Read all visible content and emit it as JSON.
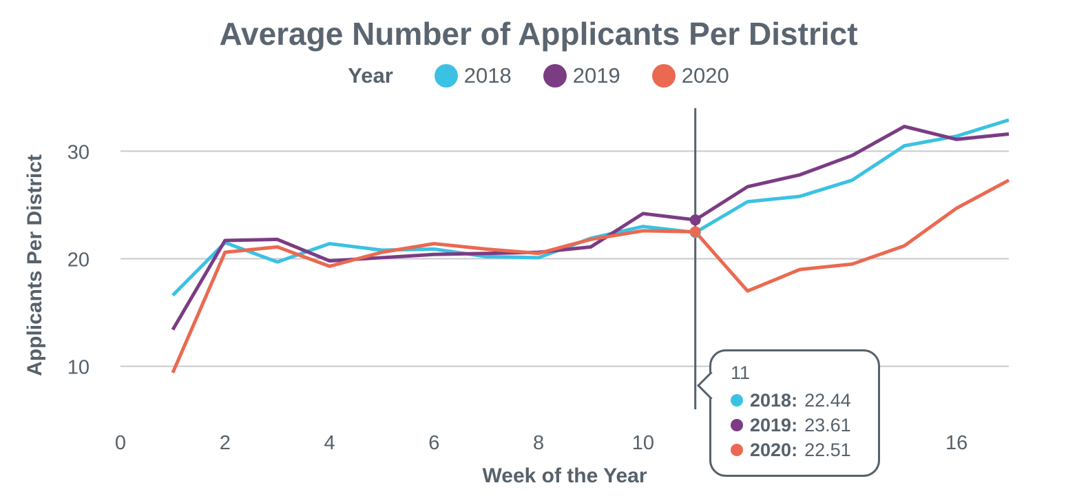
{
  "chart_data": {
    "type": "line",
    "title": "Average Number of Applicants Per District",
    "xlabel": "Week of the Year",
    "ylabel": "Applicants Per District",
    "xlim": [
      0,
      17
    ],
    "ylim": [
      6,
      34
    ],
    "x_ticks": [
      0,
      2,
      4,
      6,
      8,
      10,
      16
    ],
    "y_ticks": [
      10,
      20,
      30
    ],
    "grid": "horizontal",
    "legend": {
      "title": "Year",
      "placement": "top-center"
    },
    "x": [
      1,
      2,
      3,
      4,
      5,
      6,
      7,
      8,
      9,
      10,
      11,
      12,
      13,
      14,
      15,
      16,
      17
    ],
    "series": [
      {
        "name": "2018",
        "color": "#3bc1e3",
        "values": [
          16.6,
          21.5,
          19.7,
          21.4,
          20.8,
          20.9,
          20.2,
          20.1,
          21.9,
          23.0,
          22.44,
          25.3,
          25.8,
          27.3,
          30.5,
          31.4,
          32.9
        ]
      },
      {
        "name": "2019",
        "color": "#7b3c84",
        "values": [
          13.4,
          21.7,
          21.8,
          19.8,
          20.1,
          20.4,
          20.5,
          20.6,
          21.1,
          24.2,
          23.61,
          26.7,
          27.8,
          29.6,
          32.3,
          31.1,
          31.6
        ]
      },
      {
        "name": "2020",
        "color": "#e96a51",
        "values": [
          9.4,
          20.6,
          21.1,
          19.3,
          20.6,
          21.4,
          20.9,
          20.5,
          21.8,
          22.6,
          22.51,
          17.0,
          19.0,
          19.5,
          21.2,
          24.7,
          27.3
        ]
      }
    ],
    "hover": {
      "x": 11,
      "label": "11",
      "rows": [
        {
          "label": "2018:",
          "value": "22.44",
          "color": "#3bc1e3"
        },
        {
          "label": "2019:",
          "value": "23.61",
          "color": "#7b3c84"
        },
        {
          "label": "2020:",
          "value": "22.51",
          "color": "#e96a51"
        }
      ]
    }
  }
}
